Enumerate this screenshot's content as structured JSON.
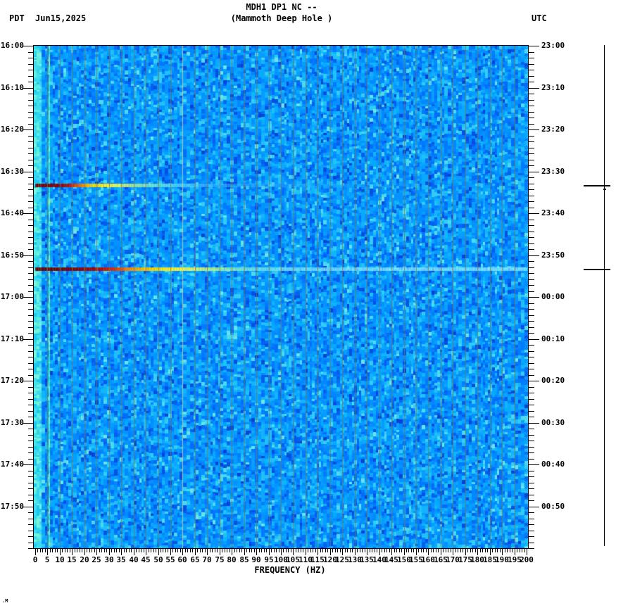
{
  "header": {
    "tz_left": "PDT",
    "date": "Jun15,2025",
    "title": "MDH1 DP1 NC --",
    "subtitle": "(Mammoth Deep Hole )",
    "tz_right": "UTC"
  },
  "x_axis_title": "FREQUENCY (HZ)",
  "footer": {
    "artifact": ".M"
  },
  "chart_data": {
    "type": "heatmap",
    "subtype": "seismic-spectrogram",
    "station": "MDH1 DP1 NC --",
    "station_name": "Mammoth Deep Hole",
    "date": "Jun15,2025",
    "xlabel": "FREQUENCY (HZ)",
    "freq_range_hz": [
      0,
      200
    ],
    "x_major_step_hz": 5,
    "x_minor_step_hz": 1,
    "x_tick_labels": [
      "0",
      "5",
      "10",
      "15",
      "20",
      "25",
      "30",
      "35",
      "40",
      "45",
      "50",
      "55",
      "60",
      "65",
      "70",
      "75",
      "80",
      "85",
      "90",
      "95",
      "100",
      "105",
      "110",
      "115",
      "120",
      "125",
      "130",
      "135",
      "140",
      "145",
      "150",
      "155",
      "160",
      "165",
      "170",
      "175",
      "180",
      "185",
      "190",
      "195",
      "200"
    ],
    "time_span_pdt": [
      "16:00",
      "18:00"
    ],
    "time_span_utc": [
      "23:00",
      "01:00"
    ],
    "y_left_tick_labels": [
      "16:00",
      "16:10",
      "16:20",
      "16:30",
      "16:40",
      "16:50",
      "17:00",
      "17:10",
      "17:20",
      "17:30",
      "17:40",
      "17:50"
    ],
    "y_right_tick_labels": [
      "23:00",
      "23:10",
      "23:20",
      "23:30",
      "23:40",
      "23:50",
      "00:00",
      "00:10",
      "00:20",
      "00:30",
      "00:40",
      "00:50"
    ],
    "background": {
      "description": "mottled blue broadband noise",
      "palette": [
        "#0542d6",
        "#0550e2",
        "#045eee",
        "#036cf8",
        "#027aff",
        "#0288ff",
        "#0493ff",
        "#069eff",
        "#08a9ff",
        "#12b4fc",
        "#20c0f8",
        "#34ccf4",
        "#4cd9ee",
        "#68e4e8"
      ],
      "low_band_palette": [
        "#18c8f0",
        "#2cd6ee",
        "#44e2e6",
        "#5ceee0",
        "#40d8f0",
        "#78f2dc"
      ],
      "low_band_hz": [
        0,
        2.5
      ],
      "persistent_line_hz": 5.5,
      "persistent_line_palette": [
        "#2ee2b6",
        "#48ecc2",
        "#6cf2ae",
        "#38d8d8",
        "#90f0a0"
      ],
      "gridline_every_hz": 5,
      "gridline_color": "rgba(115,120,88,0.78)",
      "mains_line_hz": 60,
      "mains_line_color": "rgba(190,205,140,0.9)"
    },
    "events": [
      {
        "time_pdt": "16:33",
        "time_utc": "23:33",
        "intensity": "moderate",
        "visible_freq_extent_hz": 165,
        "color_stops": [
          [
            0,
            "#700000",
            1
          ],
          [
            10,
            "#8a0000",
            1
          ],
          [
            13,
            "#b40800",
            1
          ],
          [
            15,
            "#d42600",
            1
          ],
          [
            17,
            "#ee5000",
            1
          ],
          [
            19,
            "#fc8200",
            1
          ],
          [
            21,
            "#ffb400",
            1
          ],
          [
            23,
            "#ffd800",
            1
          ],
          [
            27,
            "#ffee10",
            1
          ],
          [
            31,
            "#f8f440",
            1
          ],
          [
            34,
            "#e4f660",
            0.98
          ],
          [
            38,
            "#c2f27c",
            0.95
          ],
          [
            43,
            "#9aee9e",
            0.92
          ],
          [
            48,
            "#7ce8c4",
            0.88
          ],
          [
            54,
            "#68e0e4",
            0.84
          ],
          [
            62,
            "#58d0f6",
            0.75
          ],
          [
            72,
            "#48c2ff",
            0.62
          ],
          [
            85,
            "#3cb8ff",
            0.5
          ],
          [
            105,
            "#32b2ff",
            0.36
          ],
          [
            130,
            "#2caeff",
            0.22
          ],
          [
            155,
            "#2aacff",
            0.1
          ],
          [
            168,
            "#2aacff",
            0
          ]
        ]
      },
      {
        "time_pdt": "16:53",
        "time_utc": "23:53",
        "intensity": "strong",
        "visible_freq_extent_hz": 200,
        "color_stops": [
          [
            0,
            "#6c0000",
            1
          ],
          [
            14,
            "#780000",
            1
          ],
          [
            17,
            "#8e0000",
            1
          ],
          [
            22,
            "#a40000",
            1
          ],
          [
            27,
            "#c00800",
            1
          ],
          [
            31,
            "#da2400",
            1
          ],
          [
            34,
            "#ee4c00",
            1
          ],
          [
            37,
            "#fa7400",
            1
          ],
          [
            40,
            "#ff9c00",
            1
          ],
          [
            44,
            "#ffc000",
            1
          ],
          [
            49,
            "#ffdc00",
            1
          ],
          [
            55,
            "#ffee20",
            1
          ],
          [
            61,
            "#f6f44c",
            1
          ],
          [
            66,
            "#dcf46a",
            0.98
          ],
          [
            72,
            "#baf08a",
            0.95
          ],
          [
            79,
            "#96ecb0",
            0.92
          ],
          [
            86,
            "#7ee6d2",
            0.9
          ],
          [
            95,
            "#74e2ea",
            0.88
          ],
          [
            108,
            "#7ce4f6",
            0.85
          ],
          [
            125,
            "#88e8fa",
            0.82
          ],
          [
            150,
            "#92ecfd",
            0.8
          ],
          [
            175,
            "#98eeff",
            0.78
          ],
          [
            200,
            "#9cf0ff",
            0.76
          ]
        ]
      }
    ],
    "scale_bar": {
      "position": "right",
      "marks_events": true
    }
  }
}
